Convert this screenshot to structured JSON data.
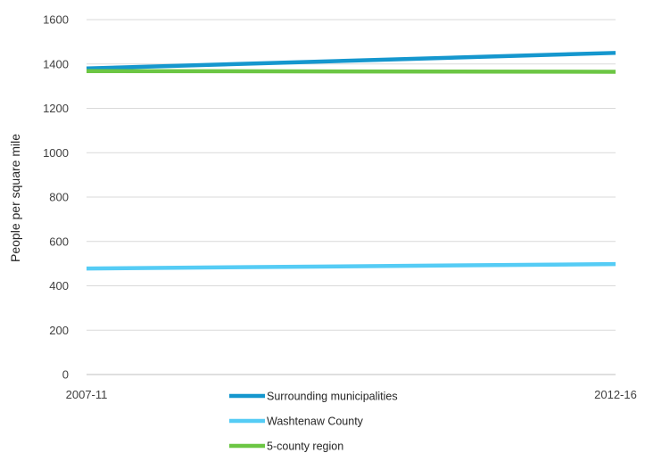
{
  "chart_data": {
    "type": "line",
    "title": "",
    "xlabel": "",
    "ylabel": "People per square mile",
    "categories": [
      "2007-11",
      "2012-16"
    ],
    "ylim": [
      0,
      1600
    ],
    "yticks": [
      0,
      200,
      400,
      600,
      800,
      1000,
      1200,
      1400,
      1600
    ],
    "grid": true,
    "legend_position": "bottom",
    "series": [
      {
        "name": "Surrounding municipalities",
        "values": [
          1380,
          1450
        ],
        "color": "#1597CE"
      },
      {
        "name": "Washtenaw County",
        "values": [
          478,
          498
        ],
        "color": "#55CCF5"
      },
      {
        "name": "5-county region",
        "values": [
          1368,
          1365
        ],
        "color": "#6CC644"
      }
    ]
  }
}
